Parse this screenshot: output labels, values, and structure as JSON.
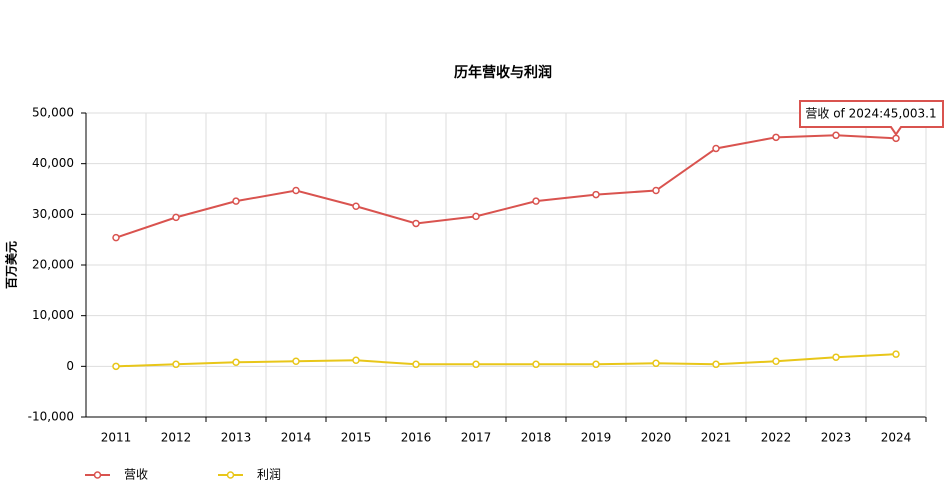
{
  "chart_data": {
    "type": "line",
    "title": "历年营收与利润",
    "y_label": "百万美元",
    "categories": [
      "2011",
      "2012",
      "2013",
      "2014",
      "2015",
      "2016",
      "2017",
      "2018",
      "2019",
      "2020",
      "2021",
      "2022",
      "2023",
      "2024"
    ],
    "series": [
      {
        "name": "营收",
        "color": "#d9534f",
        "values": [
          25400,
          29400,
          32600,
          34700,
          31600,
          28200,
          29600,
          32600,
          33900,
          34700,
          43000,
          45200,
          45600,
          45003.1
        ]
      },
      {
        "name": "利润",
        "color": "#e8c619",
        "values": [
          0,
          400,
          800,
          1000,
          1200,
          400,
          400,
          400,
          400,
          600,
          400,
          1000,
          1800,
          2400
        ]
      }
    ],
    "ylim": [
      -10000,
      50000
    ],
    "yticks": [
      {
        "value": -10000,
        "label": "-10,000"
      },
      0,
      {
        "value": 10000,
        "label": "10,000"
      },
      {
        "value": 20000,
        "label": "20,000"
      },
      {
        "value": 30000,
        "label": "30,000"
      },
      {
        "value": 40000,
        "label": "40,000"
      },
      {
        "value": 50000,
        "label": "50,000"
      }
    ],
    "grid": true,
    "legend": "bottom-left",
    "tooltip": "营收 of 2024:45,003.1"
  }
}
